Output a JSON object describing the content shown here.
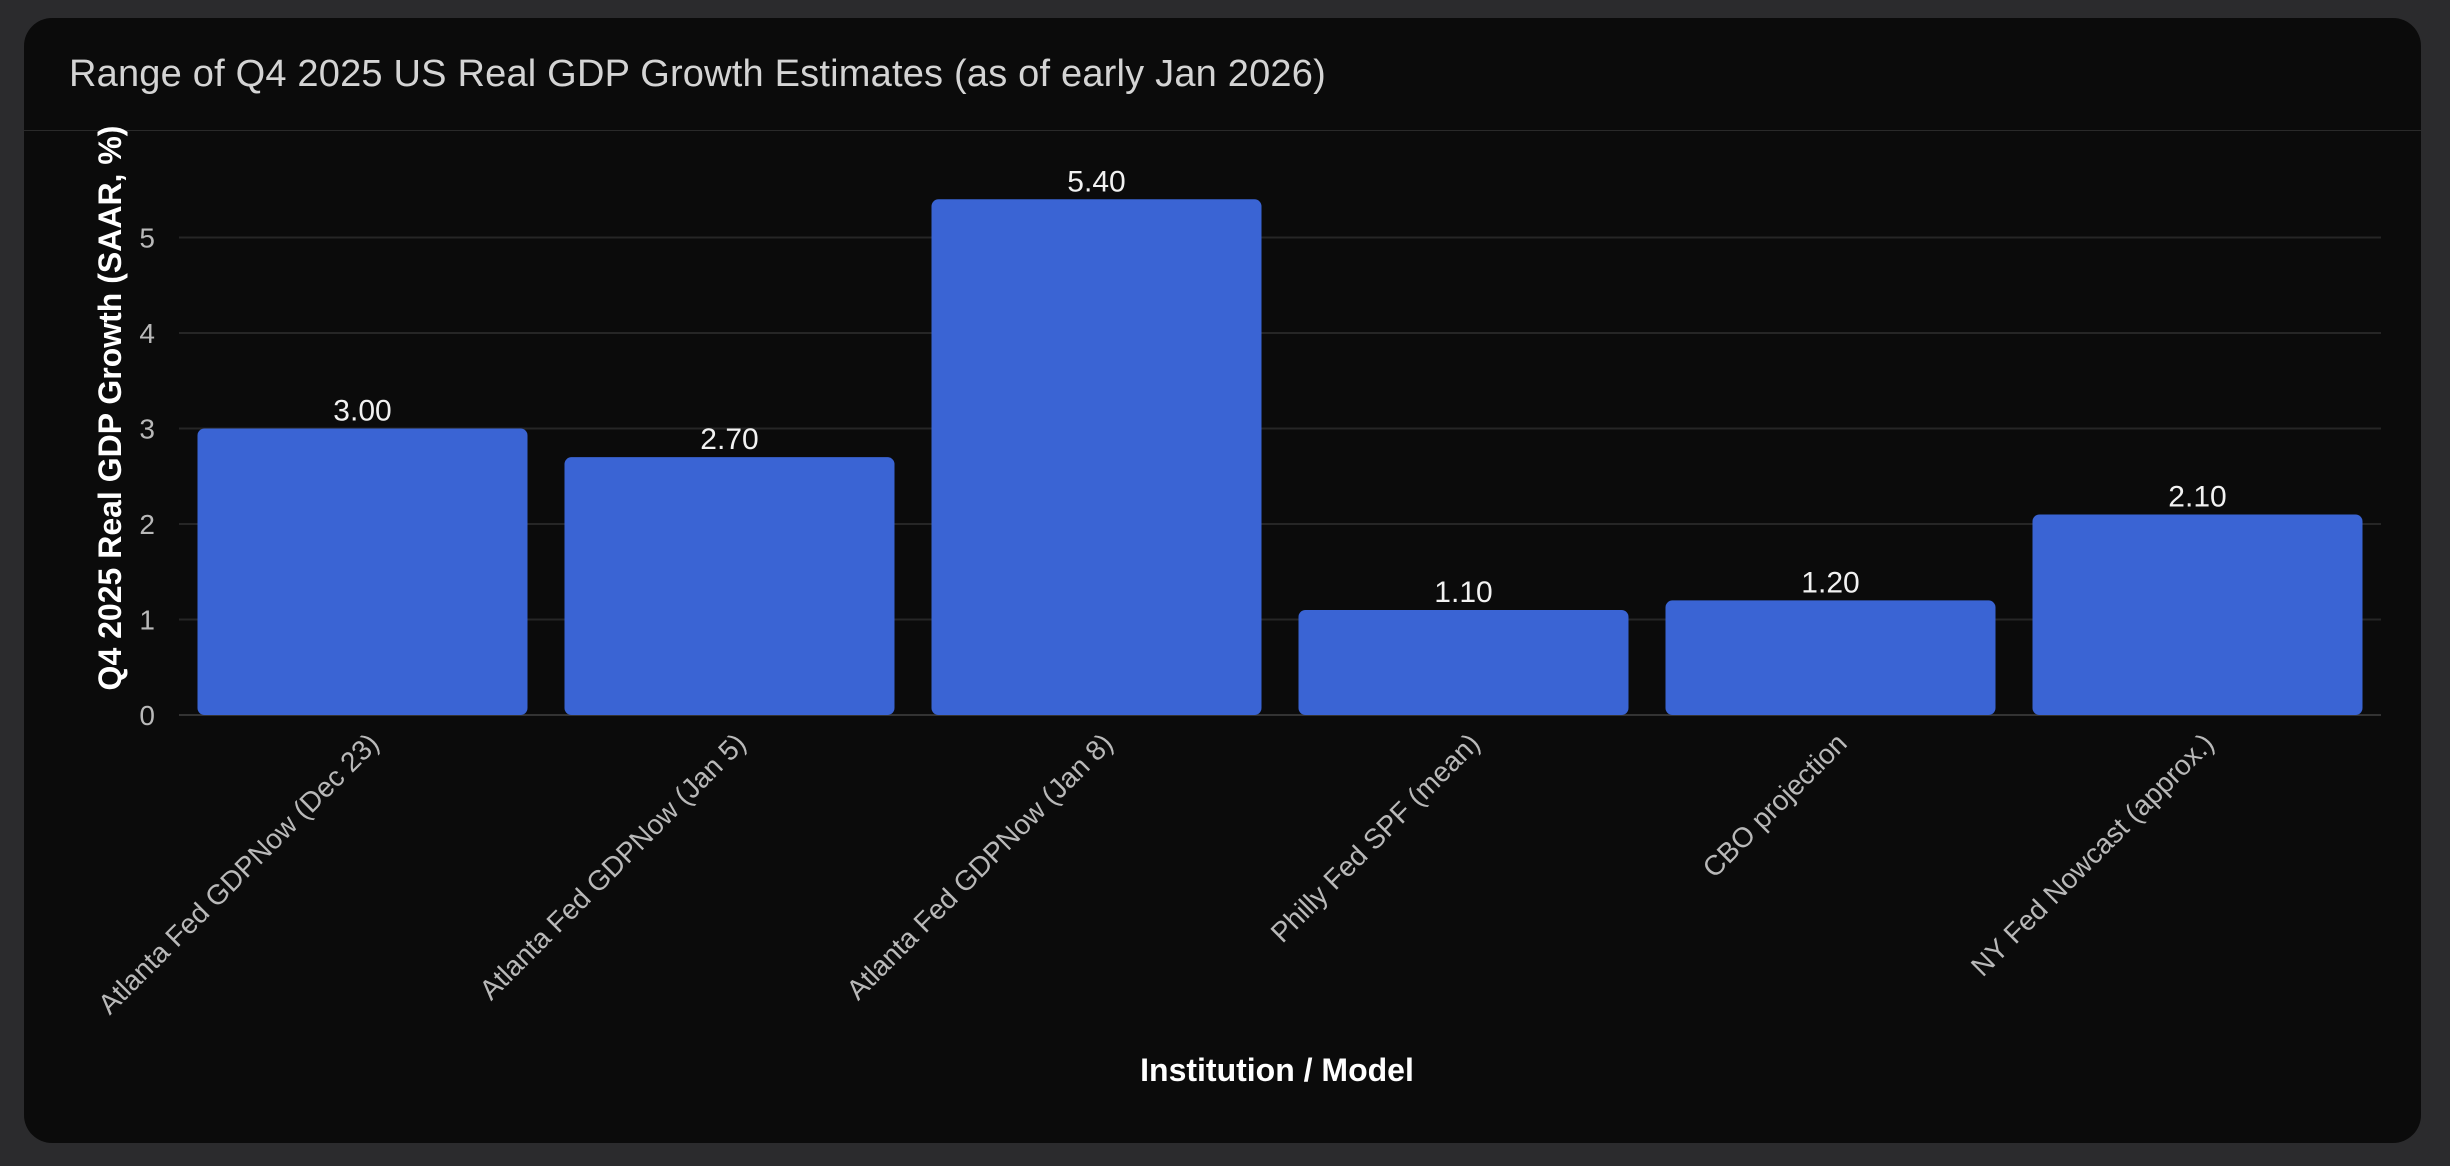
{
  "card": {
    "title": "Range of Q4 2025 US Real GDP Growth Estimates (as of early Jan 2026)"
  },
  "colors": {
    "bar": "#3a64d4",
    "background": "#0b0b0b",
    "grid": "#262626"
  },
  "chart_data": {
    "type": "bar",
    "title": "Range of Q4 2025 US Real GDP Growth Estimates (as of early Jan 2026)",
    "xlabel": "Institution / Model",
    "ylabel": "Q4 2025 Real GDP Growth (SAAR, %)",
    "categories": [
      "Atlanta Fed GDPNow (Dec 23)",
      "Atlanta Fed GDPNow (Jan 5)",
      "Atlanta Fed GDPNow (Jan 8)",
      "Philly Fed SPF (mean)",
      "CBO projection",
      "NY Fed Nowcast (approx.)"
    ],
    "values": [
      3.0,
      2.7,
      5.4,
      1.1,
      1.2,
      2.1
    ],
    "data_labels": [
      "3.00",
      "2.70",
      "5.40",
      "1.10",
      "1.20",
      "2.10"
    ],
    "yticks": [
      0,
      1,
      2,
      3,
      4,
      5
    ],
    "ylim": [
      0,
      5.4
    ],
    "grid": true,
    "legend": "none"
  }
}
